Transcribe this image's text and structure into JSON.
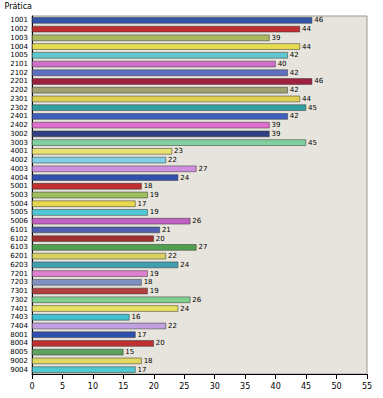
{
  "chart_data": {
    "type": "bar",
    "orientation": "horizontal",
    "y_label": "Prática",
    "categories": [
      "1001",
      "1002",
      "1003",
      "1004",
      "1005",
      "2101",
      "2102",
      "2201",
      "2202",
      "2301",
      "2302",
      "2401",
      "2402",
      "3002",
      "3003",
      "4001",
      "4002",
      "4003",
      "4004",
      "5001",
      "5003",
      "5004",
      "5005",
      "5006",
      "6101",
      "6102",
      "6103",
      "6201",
      "6203",
      "7201",
      "7203",
      "7301",
      "7302",
      "7401",
      "7403",
      "7404",
      "8001",
      "8004",
      "8005",
      "9002",
      "9004"
    ],
    "values": [
      46,
      44,
      39,
      44,
      42,
      40,
      42,
      46,
      42,
      44,
      45,
      42,
      39,
      39,
      45,
      23,
      22,
      27,
      24,
      18,
      19,
      17,
      19,
      26,
      21,
      20,
      27,
      22,
      24,
      19,
      18,
      19,
      26,
      24,
      16,
      22,
      17,
      20,
      15,
      18,
      17
    ],
    "colors": [
      "#3355aa",
      "#c03030",
      "#aab860",
      "#e6dc50",
      "#60c8d0",
      "#d070c8",
      "#6070c0",
      "#a02040",
      "#a0a070",
      "#e0d050",
      "#30a0a0",
      "#4060c0",
      "#e070d0",
      "#304080",
      "#80d0a0",
      "#e8e070",
      "#80d0e8",
      "#d090e0",
      "#3050b0",
      "#c03030",
      "#a0c060",
      "#e8d850",
      "#50c8d8",
      "#c060c0",
      "#5060b0",
      "#a03030",
      "#50a050",
      "#d8d060",
      "#40a0b0",
      "#e080d0",
      "#8090c0",
      "#b04040",
      "#80d090",
      "#e8e060",
      "#40c0d0",
      "#c0a0e0",
      "#3050b0",
      "#c03030",
      "#60a060",
      "#e0d860",
      "#50c8d0"
    ],
    "xlim": [
      0,
      55
    ],
    "xticks": [
      0,
      5,
      10,
      15,
      20,
      25,
      30,
      35,
      40,
      45,
      50,
      55
    ],
    "data_labels": true,
    "grid": false
  }
}
